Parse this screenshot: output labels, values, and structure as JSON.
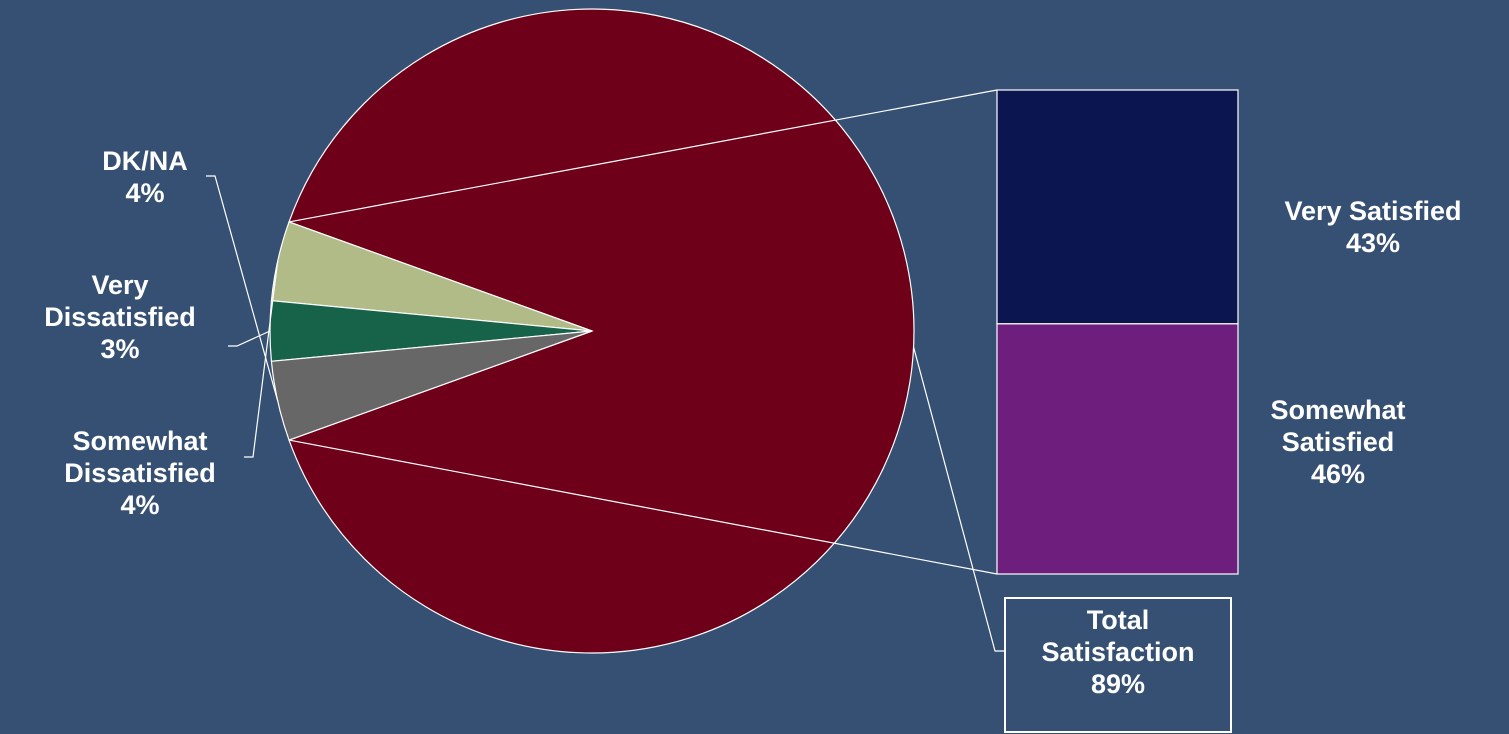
{
  "chart_data": {
    "type": "pie",
    "title": "",
    "slices": [
      {
        "label": "Total Satisfaction",
        "value": 89,
        "pct": "89%",
        "color": "#6e0019"
      },
      {
        "label": "Somewhat Dissatisfied",
        "value": 4,
        "pct": "4%",
        "color": "#b0bb88"
      },
      {
        "label": "Very Dissatisfied",
        "value": 3,
        "pct": "3%",
        "color": "#17634a"
      },
      {
        "label": "DK/NA",
        "value": 4,
        "pct": "4%",
        "color": "#676767"
      }
    ],
    "breakdown": {
      "of": "Total Satisfaction",
      "segments": [
        {
          "label": "Very Satisfied",
          "value": 43,
          "pct": "43%",
          "color": "#0b1550"
        },
        {
          "label": "Somewhat Satisfied",
          "value": 46,
          "pct": "46%",
          "color": "#6e1f7d"
        }
      ]
    }
  },
  "labels": {
    "dkna": {
      "line1": "DK/NA",
      "line2": "4%"
    },
    "very_dissatisfied": {
      "line1": "Very",
      "line2": "Dissatisfied",
      "line3": "3%"
    },
    "somewhat_dissatisfied": {
      "line1": "Somewhat",
      "line2": "Dissatisfied",
      "line3": "4%"
    },
    "very_satisfied": {
      "line1": "Very Satisfied",
      "line2": "43%"
    },
    "somewhat_satisfied": {
      "line1": "Somewhat",
      "line2": "Satisfied",
      "line3": "46%"
    },
    "total_satisfaction": {
      "line1": "Total",
      "line2": "Satisfaction",
      "line3": "89%"
    }
  }
}
